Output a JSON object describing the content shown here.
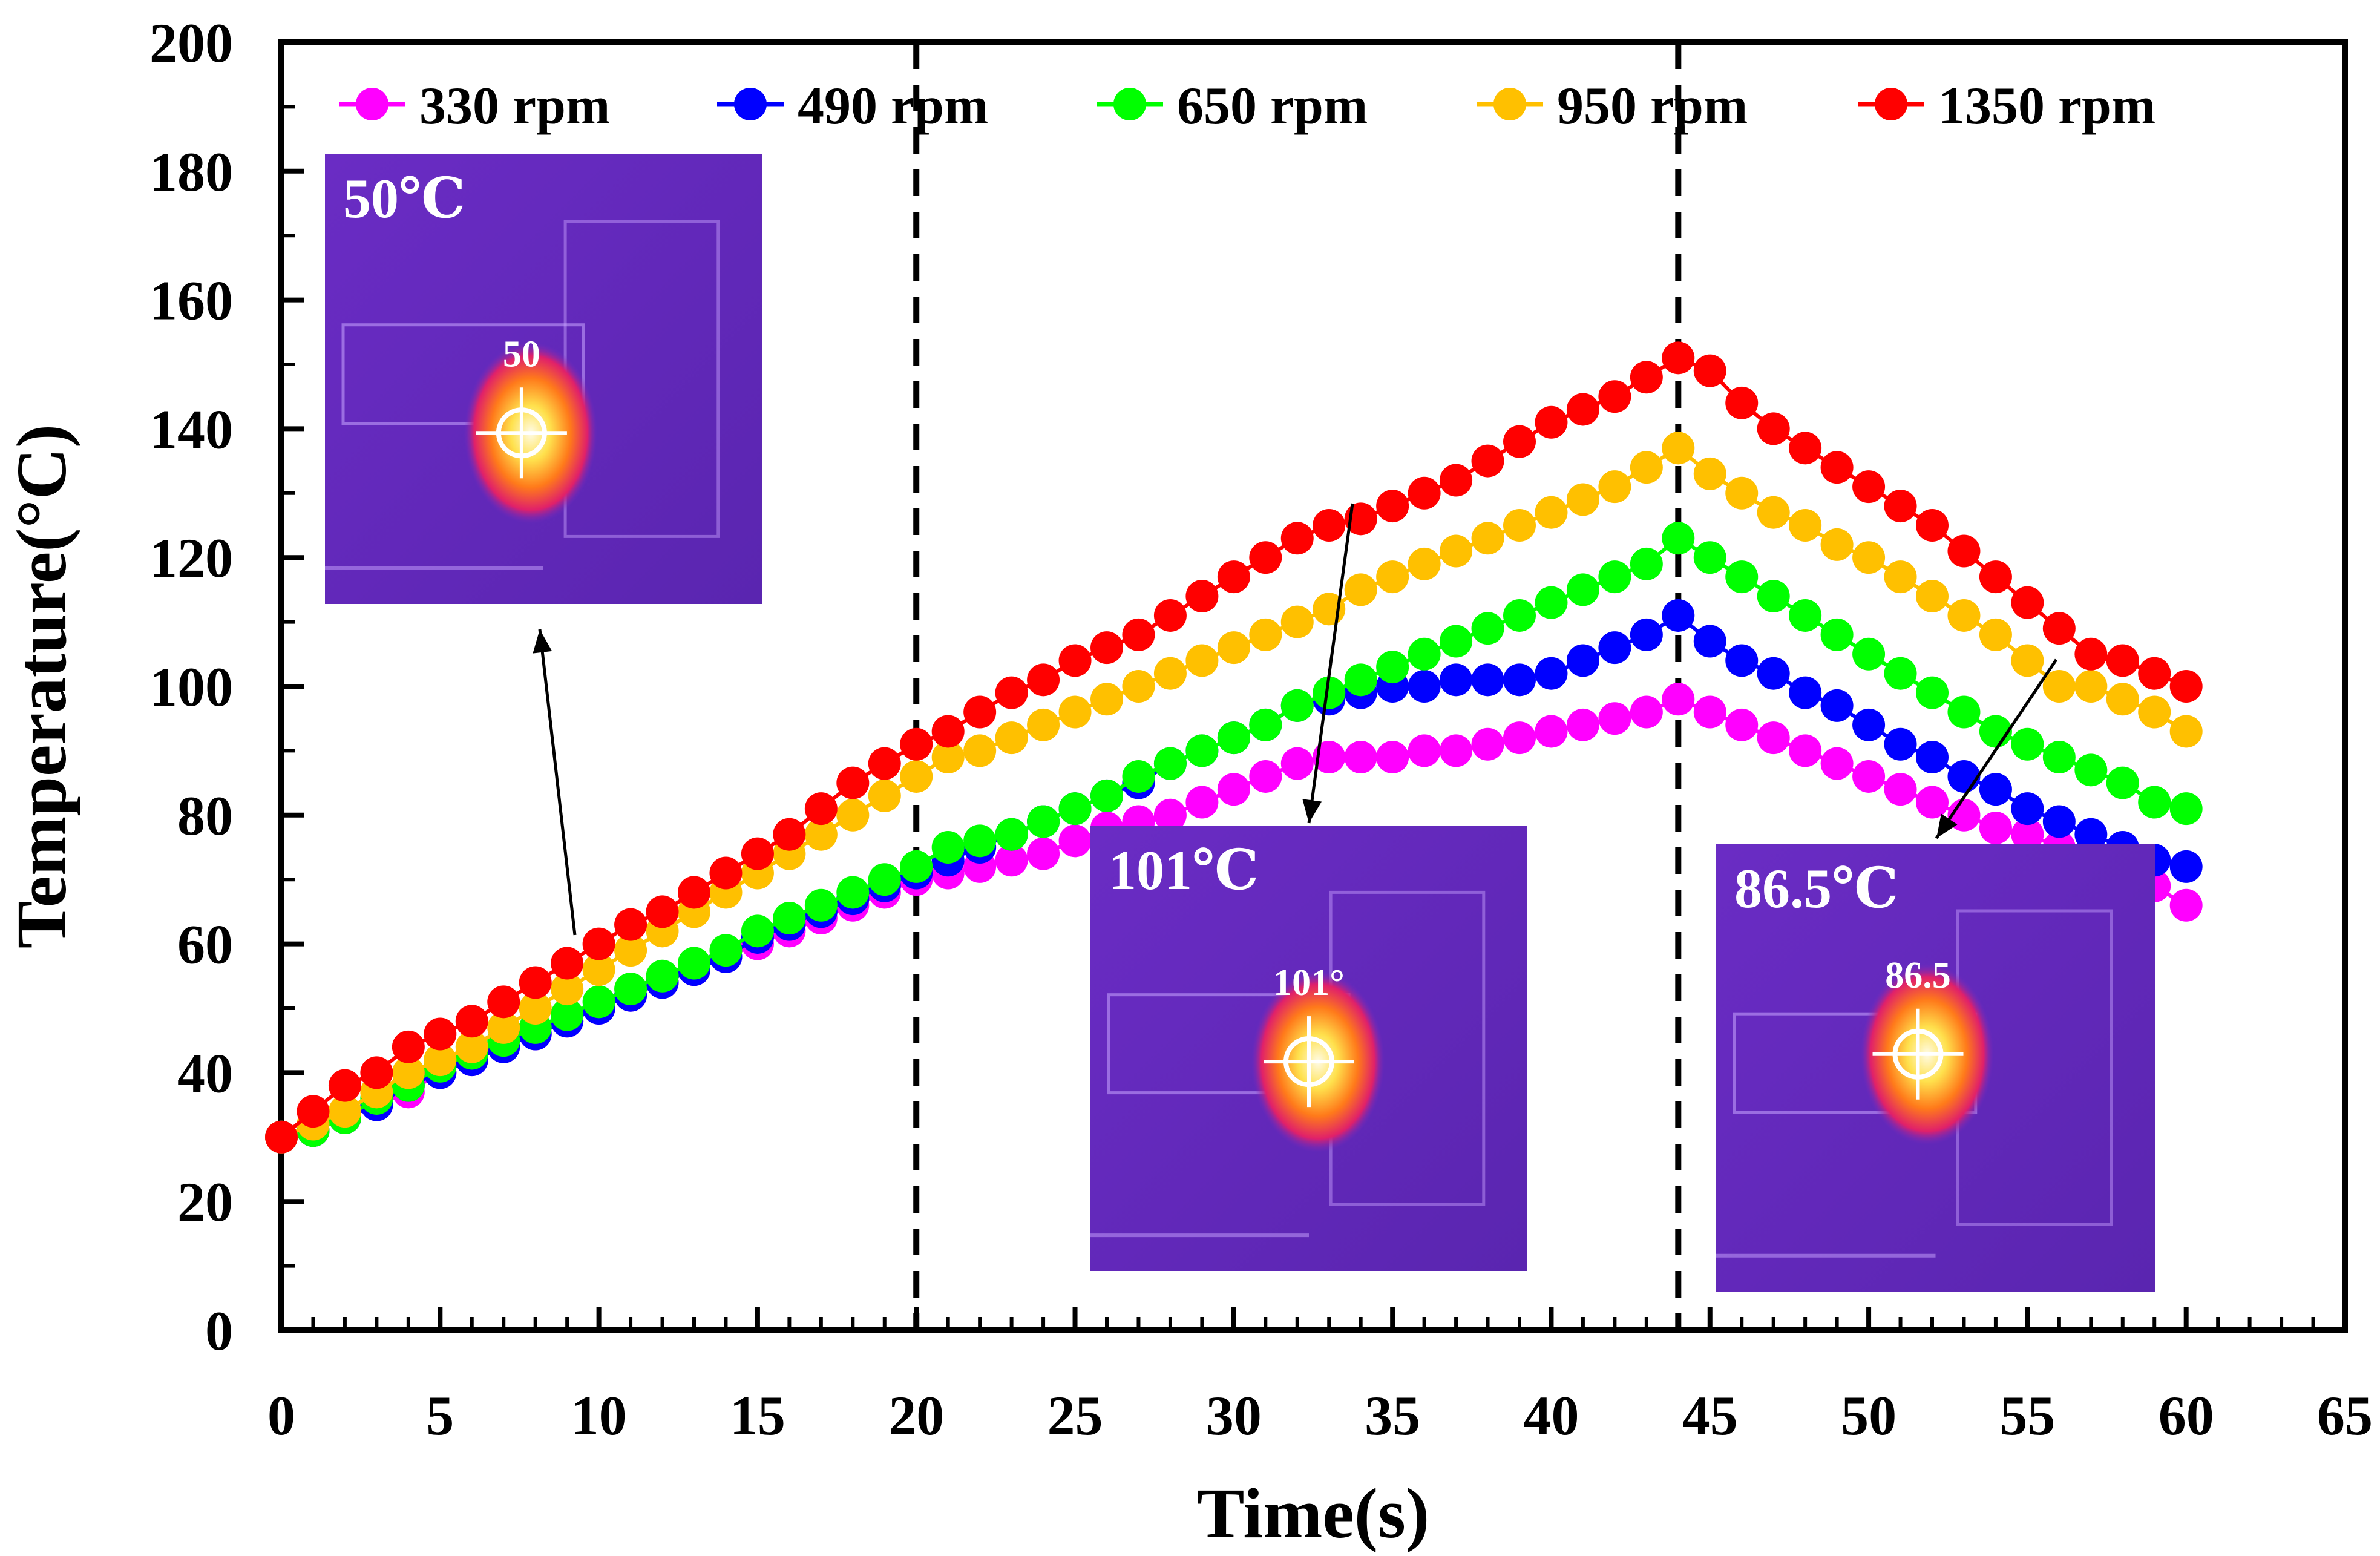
{
  "chart_data": {
    "type": "line",
    "title": "",
    "xlabel": "Time(s)",
    "ylabel": "Temperature(°C)",
    "xlim": [
      0,
      65
    ],
    "ylim": [
      0,
      200
    ],
    "x_ticks": [
      0,
      5,
      10,
      15,
      20,
      25,
      30,
      35,
      40,
      45,
      50,
      55,
      60,
      65
    ],
    "y_ticks": [
      0,
      20,
      40,
      60,
      80,
      100,
      120,
      140,
      160,
      180,
      200
    ],
    "grid": false,
    "legend_position": "top",
    "x": [
      0,
      1,
      2,
      3,
      4,
      5,
      6,
      7,
      8,
      9,
      10,
      11,
      12,
      13,
      14,
      15,
      16,
      17,
      18,
      19,
      20,
      21,
      22,
      23,
      24,
      25,
      26,
      27,
      28,
      29,
      30,
      31,
      32,
      33,
      34,
      35,
      36,
      37,
      38,
      39,
      40,
      41,
      42,
      43,
      44,
      45,
      46,
      47,
      48,
      49,
      50,
      51,
      52,
      53,
      54,
      55,
      56,
      57,
      58,
      59,
      60
    ],
    "series": [
      {
        "name": "330 rpm",
        "color": "#ff00ff",
        "values": [
          30,
          31,
          33,
          35,
          37,
          40,
          42,
          44,
          46,
          48,
          50,
          52,
          54,
          56,
          58,
          60,
          62,
          64,
          66,
          68,
          70,
          71,
          72,
          73,
          74,
          76,
          78,
          79,
          80,
          82,
          84,
          86,
          88,
          89,
          89,
          89,
          90,
          90,
          91,
          92,
          93,
          94,
          95,
          96,
          98,
          96,
          94,
          92,
          90,
          88,
          86,
          84,
          82,
          80,
          78,
          77,
          75,
          73,
          71,
          69,
          66
        ]
      },
      {
        "name": "490 rpm",
        "color": "#0000ff",
        "values": [
          30,
          31,
          33,
          35,
          38,
          40,
          42,
          44,
          46,
          48,
          50,
          52,
          54,
          56,
          58,
          61,
          63,
          65,
          67,
          69,
          71,
          73,
          75,
          77,
          79,
          81,
          83,
          85,
          88,
          90,
          92,
          94,
          97,
          98,
          99,
          100,
          100,
          101,
          101,
          101,
          102,
          104,
          106,
          108,
          111,
          107,
          104,
          102,
          99,
          97,
          94,
          91,
          89,
          86,
          84,
          81,
          79,
          77,
          75,
          73,
          72
        ]
      },
      {
        "name": "650 rpm",
        "color": "#00ff00",
        "values": [
          30,
          31,
          33,
          36,
          38,
          41,
          43,
          45,
          47,
          49,
          51,
          53,
          55,
          57,
          59,
          62,
          64,
          66,
          68,
          70,
          72,
          75,
          76,
          77,
          79,
          81,
          83,
          86,
          88,
          90,
          92,
          94,
          97,
          99,
          101,
          103,
          105,
          107,
          109,
          111,
          113,
          115,
          117,
          119,
          123,
          120,
          117,
          114,
          111,
          108,
          105,
          102,
          99,
          96,
          93,
          91,
          89,
          87,
          85,
          82,
          81
        ]
      },
      {
        "name": "950 rpm",
        "color": "#ffc000",
        "values": [
          30,
          32,
          34,
          37,
          40,
          42,
          44,
          47,
          50,
          53,
          56,
          59,
          62,
          65,
          68,
          71,
          74,
          77,
          80,
          83,
          86,
          89,
          90,
          92,
          94,
          96,
          98,
          100,
          102,
          104,
          106,
          108,
          110,
          112,
          115,
          117,
          119,
          121,
          123,
          125,
          127,
          129,
          131,
          134,
          137,
          133,
          130,
          127,
          125,
          122,
          120,
          117,
          114,
          111,
          108,
          104,
          100,
          100,
          98,
          96,
          93
        ]
      },
      {
        "name": "1350 rpm",
        "color": "#ff0000",
        "values": [
          30,
          34,
          38,
          40,
          44,
          46,
          48,
          51,
          54,
          57,
          60,
          63,
          65,
          68,
          71,
          74,
          77,
          81,
          85,
          88,
          91,
          93,
          96,
          99,
          101,
          104,
          106,
          108,
          111,
          114,
          117,
          120,
          123,
          125,
          126,
          128,
          130,
          132,
          135,
          138,
          141,
          143,
          145,
          148,
          151,
          149,
          144,
          140,
          137,
          134,
          131,
          128,
          125,
          121,
          117,
          113,
          109,
          105,
          104,
          102,
          100
        ]
      }
    ],
    "reference_lines_x": [
      20,
      44
    ],
    "insets": [
      {
        "name": "inset-50",
        "label": "50℃",
        "reading": "50",
        "arrow_to_x": 9,
        "arrow_to_y": 60
      },
      {
        "name": "inset-101",
        "label": "101℃",
        "reading": "101°",
        "arrow_to_x": 34,
        "arrow_to_y": 126
      },
      {
        "name": "inset-86-5",
        "label": "86.5℃",
        "reading": "86.5",
        "arrow_to_x": 57,
        "arrow_to_y": 104
      }
    ]
  }
}
